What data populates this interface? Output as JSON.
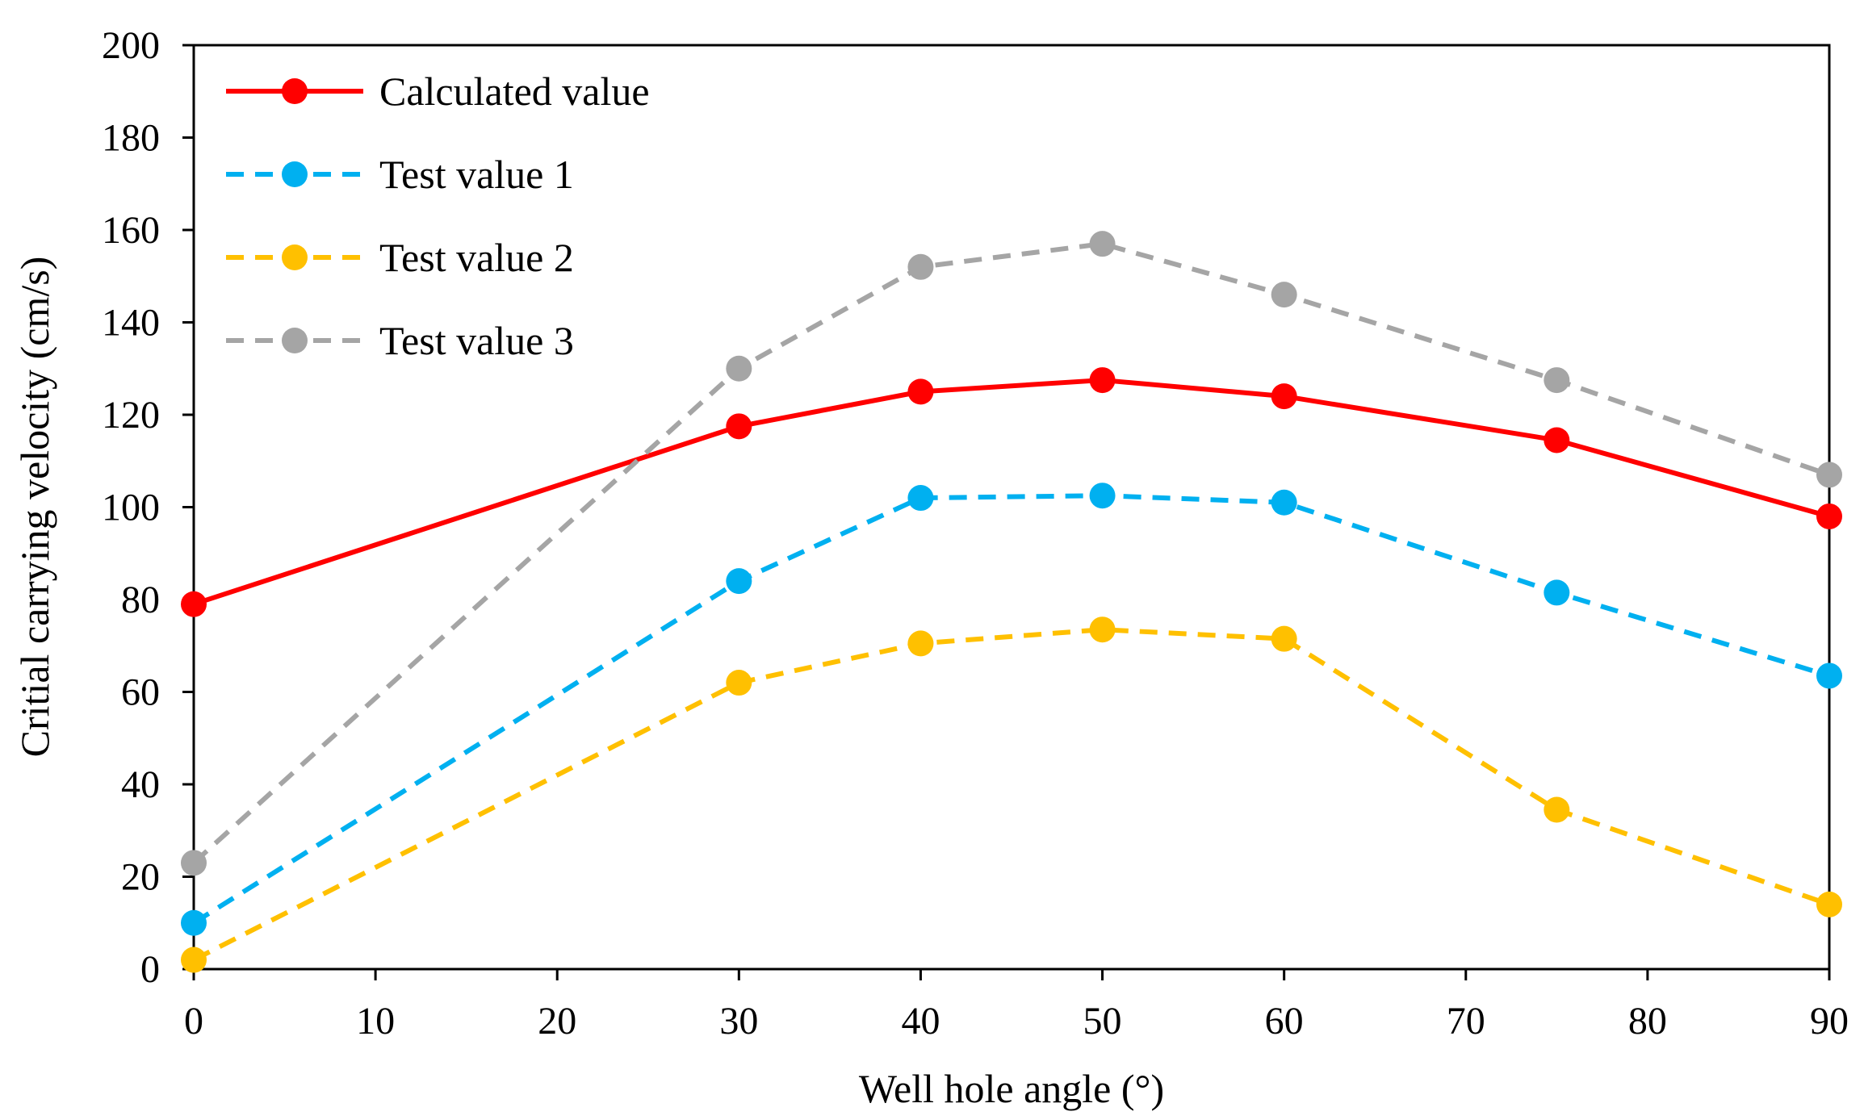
{
  "chart_data": {
    "type": "line",
    "title": "",
    "xlabel": "Well hole angle (°)",
    "ylabel": "Critial carrying velocity (cm/s)",
    "xlim": [
      0,
      90
    ],
    "ylim": [
      0,
      200
    ],
    "xticks": [
      "0",
      "10",
      "20",
      "30",
      "40",
      "50",
      "60",
      "70",
      "80",
      "90"
    ],
    "yticks": [
      "0",
      "20",
      "40",
      "60",
      "80",
      "100",
      "120",
      "140",
      "160",
      "180",
      "200"
    ],
    "grid": false,
    "legend_position": "top-left",
    "x": [
      0,
      30,
      40,
      50,
      60,
      75,
      90
    ],
    "series": [
      {
        "name": "Calculated value",
        "color": "#ff0000",
        "dashed": false,
        "values": [
          79,
          117.5,
          125,
          127.5,
          124,
          114.5,
          98
        ]
      },
      {
        "name": "Test value 1",
        "color": "#00b0f0",
        "dashed": true,
        "values": [
          10,
          84,
          102,
          102.5,
          101,
          81.5,
          63.5
        ]
      },
      {
        "name": "Test value 2",
        "color": "#ffc000",
        "dashed": true,
        "values": [
          2,
          62,
          70.5,
          73.5,
          71.5,
          34.5,
          14
        ]
      },
      {
        "name": "Test value 3",
        "color": "#a5a5a5",
        "dashed": true,
        "values": [
          23,
          130,
          152,
          157,
          146,
          127.5,
          107
        ]
      }
    ]
  }
}
